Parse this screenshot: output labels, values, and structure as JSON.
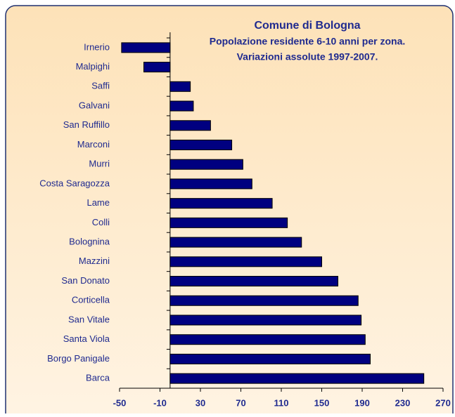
{
  "chart_data": {
    "type": "barh",
    "title": "Comune di Bologna",
    "subtitle": [
      "Popolazione residente 6-10 anni per zona.",
      "Variazioni assolute 1997-2007."
    ],
    "categories": [
      "Irnerio",
      "Malpighi",
      "Saffi",
      "Galvani",
      "San Ruffillo",
      "Marconi",
      "Murri",
      "Costa Saragozza",
      "Lame",
      "Colli",
      "Bolognina",
      "Mazzini",
      "San Donato",
      "Corticella",
      "San Vitale",
      "Santa Viola",
      "Borgo Panigale",
      "Barca"
    ],
    "values": [
      -48,
      -26,
      20,
      23,
      40,
      61,
      72,
      81,
      101,
      116,
      130,
      150,
      166,
      186,
      189,
      193,
      198,
      251
    ],
    "color": "#000080",
    "xlim": [
      -50,
      270
    ],
    "xticks": [
      -50,
      -10,
      30,
      70,
      110,
      150,
      190,
      230,
      270
    ]
  }
}
